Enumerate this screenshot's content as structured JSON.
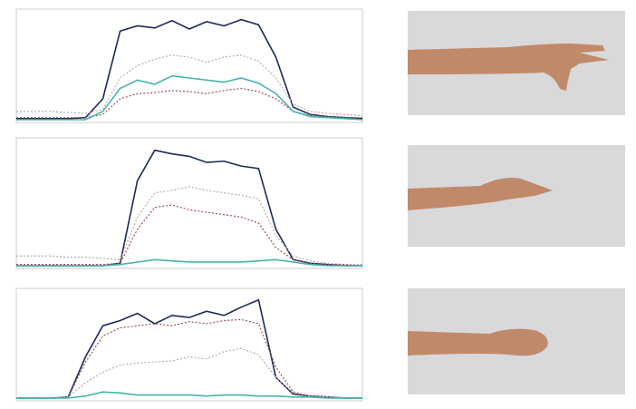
{
  "chart_data": [
    {
      "type": "line",
      "xlim": [
        0,
        20
      ],
      "ylim": [
        0,
        100
      ],
      "x": [
        0,
        1,
        2,
        3,
        4,
        5,
        6,
        7,
        8,
        9,
        10,
        11,
        12,
        13,
        14,
        15,
        16,
        17,
        18,
        19,
        20
      ],
      "series": [
        {
          "color": "#1c2b5c",
          "dash": false,
          "values": [
            1,
            1,
            1,
            1,
            2,
            20,
            85,
            90,
            88,
            95,
            87,
            94,
            90,
            96,
            91,
            60,
            12,
            5,
            3,
            2,
            1
          ]
        },
        {
          "color": "#b9a9b4",
          "dash": true,
          "values": [
            8,
            8,
            8,
            7,
            6,
            10,
            40,
            52,
            58,
            62,
            60,
            55,
            60,
            62,
            56,
            40,
            15,
            8,
            6,
            5,
            4
          ]
        },
        {
          "color": "#a24f4f",
          "dash": true,
          "values": [
            2,
            2,
            2,
            2,
            2,
            5,
            20,
            25,
            26,
            28,
            27,
            25,
            28,
            30,
            27,
            20,
            8,
            4,
            3,
            2,
            2
          ]
        },
        {
          "color": "#45b5ad",
          "dash": false,
          "values": [
            0,
            0,
            0,
            0,
            0,
            8,
            30,
            38,
            34,
            42,
            40,
            38,
            36,
            40,
            35,
            25,
            8,
            3,
            2,
            1,
            0
          ]
        }
      ]
    },
    {
      "type": "line",
      "xlim": [
        0,
        20
      ],
      "ylim": [
        0,
        100
      ],
      "x": [
        0,
        1,
        2,
        3,
        4,
        5,
        6,
        7,
        8,
        9,
        10,
        11,
        12,
        13,
        14,
        15,
        16,
        17,
        18,
        19,
        20
      ],
      "series": [
        {
          "color": "#1c2b5c",
          "dash": false,
          "values": [
            0,
            0,
            0,
            0,
            0,
            0,
            2,
            70,
            95,
            92,
            90,
            85,
            86,
            82,
            80,
            30,
            5,
            2,
            1,
            0,
            0
          ]
        },
        {
          "color": "#b9a9b4",
          "dash": true,
          "values": [
            8,
            8,
            8,
            7,
            7,
            6,
            5,
            40,
            60,
            62,
            65,
            62,
            60,
            58,
            55,
            25,
            8,
            4,
            2,
            1,
            1
          ]
        },
        {
          "color": "#a24f4f",
          "dash": true,
          "values": [
            1,
            1,
            1,
            1,
            1,
            1,
            2,
            30,
            48,
            50,
            46,
            44,
            42,
            40,
            35,
            15,
            5,
            2,
            1,
            1,
            0
          ]
        },
        {
          "color": "#45b5ad",
          "dash": false,
          "values": [
            0,
            0,
            0,
            0,
            0,
            0,
            1,
            3,
            5,
            4,
            3,
            3,
            3,
            3,
            4,
            5,
            3,
            1,
            0,
            0,
            0
          ]
        }
      ]
    },
    {
      "type": "line",
      "xlim": [
        0,
        20
      ],
      "ylim": [
        0,
        100
      ],
      "x": [
        0,
        1,
        2,
        3,
        4,
        5,
        6,
        7,
        8,
        9,
        10,
        11,
        12,
        13,
        14,
        15,
        16,
        17,
        18,
        19,
        20
      ],
      "series": [
        {
          "color": "#1c2b5c",
          "dash": false,
          "values": [
            0,
            0,
            0,
            1,
            40,
            70,
            75,
            82,
            72,
            80,
            78,
            84,
            80,
            88,
            95,
            20,
            4,
            2,
            1,
            0,
            0
          ]
        },
        {
          "color": "#a24f4f",
          "dash": true,
          "values": [
            0,
            0,
            0,
            1,
            35,
            60,
            68,
            70,
            72,
            70,
            74,
            72,
            75,
            76,
            72,
            30,
            6,
            2,
            1,
            0,
            0
          ]
        },
        {
          "color": "#b9a9b4",
          "dash": true,
          "values": [
            0,
            0,
            0,
            1,
            15,
            25,
            32,
            34,
            35,
            36,
            40,
            38,
            45,
            48,
            42,
            20,
            5,
            2,
            1,
            0,
            0
          ]
        },
        {
          "color": "#45b5ad",
          "dash": false,
          "values": [
            0,
            0,
            0,
            0,
            2,
            6,
            5,
            3,
            3,
            3,
            3,
            2,
            3,
            3,
            2,
            2,
            1,
            1,
            0,
            0,
            0
          ]
        }
      ]
    }
  ]
}
